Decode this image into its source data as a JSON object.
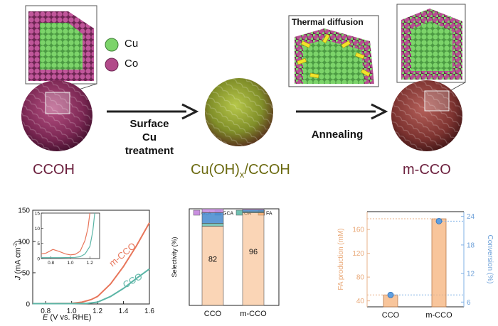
{
  "schematic": {
    "legend": [
      {
        "label": "Cu",
        "color": "#7cd46a"
      },
      {
        "label": "Co",
        "color": "#b24a8a"
      }
    ],
    "step1_label_lines": [
      "Surface",
      "Cu",
      "treatment"
    ],
    "step2_label": "Annealing",
    "inset_title": "Thermal diffusion",
    "materials": {
      "ccoh": "CCOH",
      "cu_hydroxide_prefix": "Cu(OH)",
      "cu_hydroxide_sub": "x",
      "cu_hydroxide_suffix": "/CCOH",
      "mcco": "m-CCO"
    }
  },
  "chart_data": [
    {
      "type": "line",
      "xlabel_var": "E",
      "xlabel_rest": " (V vs. RHE)",
      "ylabel_var": "J",
      "ylabel_rest": " (mA cm",
      "ylabel_sup": "-2",
      "ylabel_end": ")",
      "xlim": [
        0.7,
        1.6
      ],
      "ylim": [
        0,
        150
      ],
      "xticks": [
        "0.8",
        "1.0",
        "1.2",
        "1.4",
        "1.6"
      ],
      "yticks": [
        "0",
        "50",
        "100",
        "150"
      ],
      "series": [
        {
          "name": "m-CCO",
          "color": "#e8765b",
          "x": [
            0.7,
            1.0,
            1.08,
            1.15,
            1.2,
            1.3,
            1.4,
            1.5,
            1.6
          ],
          "y": [
            0.5,
            1,
            3,
            7,
            12,
            32,
            60,
            93,
            130
          ]
        },
        {
          "name": "CCO",
          "color": "#5bb5a6",
          "x": [
            0.7,
            1.0,
            1.12,
            1.2,
            1.3,
            1.4,
            1.5,
            1.6
          ],
          "y": [
            0.5,
            0.6,
            1,
            3,
            12,
            25,
            41,
            56
          ]
        }
      ],
      "inset": {
        "xlim": [
          0.7,
          1.3
        ],
        "ylim": [
          0,
          15
        ],
        "yticks": [
          "0",
          "5",
          "10",
          "15"
        ],
        "xticks": [
          "0.8",
          "1.0",
          "1.2"
        ],
        "series": [
          {
            "name": "m-CCO",
            "color": "#e8765b",
            "x": [
              0.7,
              0.75,
              0.82,
              0.88,
              0.95,
              1.0,
              1.05,
              1.1,
              1.15,
              1.18,
              1.2
            ],
            "y": [
              1.5,
              1.8,
              3.0,
              2.4,
              1.5,
              1.2,
              1.4,
              2.4,
              6,
              10,
              15
            ]
          },
          {
            "name": "CCO",
            "color": "#5bb5a6",
            "x": [
              0.7,
              0.9,
              1.05,
              1.1,
              1.15,
              1.2,
              1.23,
              1.25
            ],
            "y": [
              0.3,
              0.3,
              0.4,
              0.6,
              1.5,
              4,
              9,
              15
            ]
          }
        ]
      }
    },
    {
      "type": "bar",
      "ylabel": "Selectivity (%)",
      "ylim": [
        0,
        100
      ],
      "categories": [
        "CCO",
        "m-CCO"
      ],
      "series": [
        {
          "name": "FA",
          "color": "#f6b27a",
          "values": [
            82,
            96
          ]
        },
        {
          "name": "OA",
          "color": "#6fc0b1",
          "values": [
            3,
            1
          ]
        },
        {
          "name": "GCA",
          "color": "#4f8fd0",
          "values": [
            11,
            2
          ]
        },
        {
          "name": "GLA",
          "color": "#c98fe0",
          "values": [
            4,
            1
          ]
        }
      ],
      "data_labels": [
        "82",
        "96"
      ],
      "legend_order": [
        "GLA",
        "GCA",
        "OA",
        "FA"
      ]
    },
    {
      "type": "bar",
      "ylabel_left": "FA production (mM)",
      "ylabel_right": "Conversion (%)",
      "categories": [
        "CCO",
        "m-CCO"
      ],
      "ylim_left": [
        30,
        190
      ],
      "ylim_right": [
        5,
        25
      ],
      "yticks_left": [
        "40",
        "80",
        "120",
        "160"
      ],
      "yticks_right": [
        "6",
        "12",
        "18",
        "24"
      ],
      "bar_values": [
        50,
        178
      ],
      "conversion_values": [
        7.5,
        23
      ],
      "bar_color": "#f6b27a",
      "point_color": "#5f9fe0"
    }
  ]
}
